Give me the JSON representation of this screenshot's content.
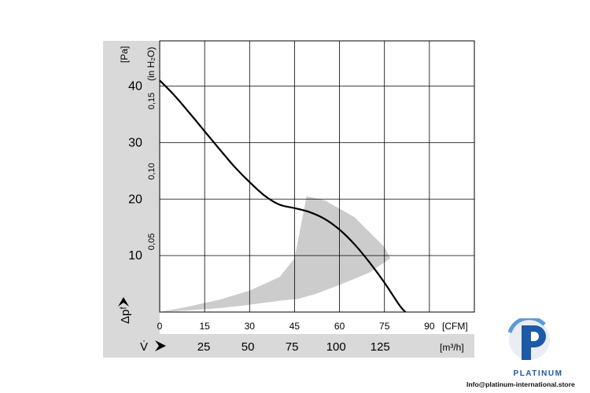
{
  "chart_data": {
    "type": "line",
    "x_unit": "[CFM]",
    "x_ticks": [
      0,
      15,
      30,
      45,
      60,
      75,
      90
    ],
    "x_range": [
      0,
      105
    ],
    "y_unit": "[Pa]",
    "y_ticks": [
      "10",
      "20",
      "30",
      "40"
    ],
    "y_range": [
      0,
      48
    ],
    "y_label": "Δpᶠ",
    "secondary_y_unit": "(in H₂O)",
    "secondary_y_ticks": [
      "0,05",
      "0,10",
      "0,15"
    ],
    "secondary_x_label": "V̇",
    "secondary_x_unit": "[m³/h]",
    "secondary_x_ticks": [
      "25",
      "50",
      "75",
      "100",
      "125"
    ],
    "grid": true,
    "series": [
      {
        "x": [
          0,
          5,
          10,
          15,
          20,
          25,
          30,
          35,
          40,
          45,
          50,
          55,
          60,
          65,
          70,
          75,
          80,
          82
        ],
        "y": [
          41,
          38.3,
          35.2,
          32.0,
          28.8,
          25.7,
          23.0,
          20.6,
          19.0,
          18.4,
          17.7,
          16.5,
          14.6,
          12.0,
          8.8,
          5.2,
          1.2,
          0
        ],
        "color": "#000000"
      }
    ],
    "shaded_region": {
      "x": [
        0,
        10,
        20,
        30,
        40,
        45,
        49,
        55,
        65,
        75,
        77,
        70,
        60,
        52,
        48,
        46,
        40,
        30,
        20,
        10,
        0
      ],
      "y": [
        0,
        1.0,
        2.2,
        3.8,
        6.2,
        9.5,
        20.5,
        19.8,
        16.8,
        11.5,
        9.5,
        7.0,
        4.8,
        3.2,
        2.6,
        2.3,
        2.0,
        1.3,
        0.7,
        0.3,
        0
      ],
      "color": "#cccccc"
    }
  },
  "branding": {
    "name": "PLATINUM",
    "email": "Info@platinum-international.store",
    "logo_color": "#1d5aa8",
    "logo_accent": "#5b9bd5"
  }
}
